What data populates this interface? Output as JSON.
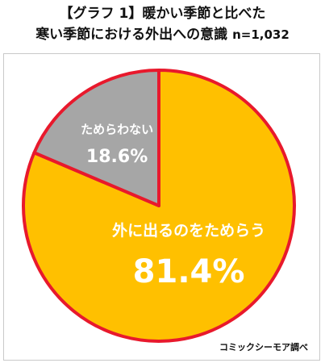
{
  "header": {
    "title_line1": "【グラフ 1】暖かい季節と比べた",
    "title_line2": "寒い季節における外出への意識",
    "sample_size": "n=1,032"
  },
  "source": "コミックシーモア調べ",
  "chart_data": {
    "type": "pie",
    "title": "【グラフ 1】暖かい季節と比べた 寒い季節における外出への意識",
    "slices": [
      {
        "label": "外に出るのをためらう",
        "value": 81.4,
        "value_label": "81.4%",
        "color": "#FFC000"
      },
      {
        "label": "ためらわない",
        "value": 18.6,
        "value_label": "18.6%",
        "color": "#A6A6A6"
      }
    ],
    "start_angle_deg": 0,
    "direction": "clockwise",
    "slice_border_color": "#E8192C",
    "legend": "none"
  }
}
